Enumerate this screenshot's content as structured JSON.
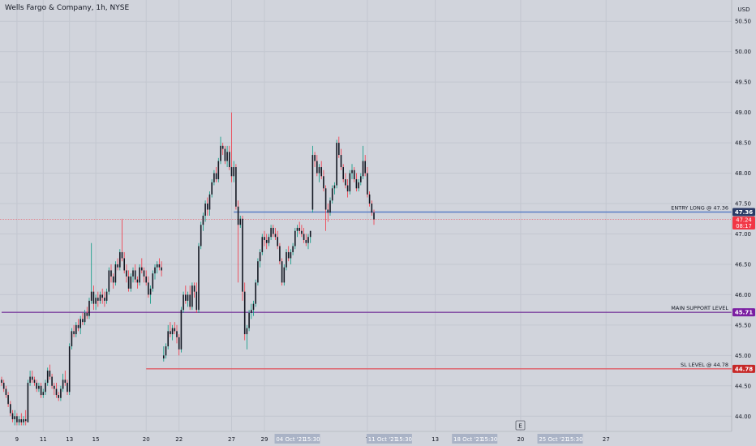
{
  "header": {
    "title": "Wells Fargo & Company, 1h, NYSE",
    "currency": "USD"
  },
  "chart_data": {
    "type": "candlestick",
    "ylim": [
      43.75,
      50.85
    ],
    "y_ticks": [
      "44.00",
      "44.50",
      "45.00",
      "45.50",
      "46.00",
      "46.50",
      "47.00",
      "47.50",
      "48.00",
      "48.50",
      "49.00",
      "49.50",
      "50.00",
      "50.50"
    ],
    "x_ticks": [
      {
        "bar": 7,
        "label": "9"
      },
      {
        "bar": 19,
        "label": "11"
      },
      {
        "bar": 31,
        "label": "13"
      },
      {
        "bar": 43,
        "label": "15"
      },
      {
        "bar": 66,
        "label": "20"
      },
      {
        "bar": 81,
        "label": "22"
      },
      {
        "bar": 105,
        "label": "27"
      },
      {
        "bar": 120,
        "label": "29"
      },
      {
        "bar": 167,
        "label": "7"
      },
      {
        "bar": 198,
        "label": "13"
      },
      {
        "bar": 237,
        "label": "20"
      },
      {
        "bar": 276,
        "label": "27"
      }
    ],
    "x_range_labels": [
      {
        "bar": 135,
        "label": "04 Oct '21",
        "time": "15:30"
      },
      {
        "bar": 177,
        "label": "11 Oct '21",
        "time": "15:30"
      },
      {
        "bar": 216,
        "label": "18 Oct '21",
        "time": "15:30"
      },
      {
        "bar": 255,
        "label": "25 Oct '21",
        "time": "15:30"
      }
    ],
    "colors": {
      "up": "#089981",
      "down": "#f23645",
      "candle_body": "#131722",
      "background": "#d1d4dc",
      "grid": "#c3c7d0",
      "axis_text": "#131722"
    },
    "ohlc": [
      [
        44.6,
        44.65,
        44.5,
        44.55
      ],
      [
        44.55,
        44.6,
        44.4,
        44.45
      ],
      [
        44.45,
        44.5,
        44.3,
        44.35
      ],
      [
        44.35,
        44.4,
        44.15,
        44.2
      ],
      [
        44.2,
        44.25,
        44.0,
        44.05
      ],
      [
        44.05,
        44.1,
        43.9,
        43.95
      ],
      [
        43.95,
        44.1,
        43.85,
        44.0
      ],
      [
        44.0,
        44.05,
        43.85,
        43.9
      ],
      [
        43.9,
        44.0,
        43.85,
        43.95
      ],
      [
        43.95,
        44.05,
        43.85,
        43.9
      ],
      [
        43.9,
        44.0,
        43.85,
        43.95
      ],
      [
        43.95,
        44.1,
        43.85,
        43.92
      ],
      [
        43.9,
        44.6,
        43.9,
        44.55
      ],
      [
        44.55,
        44.75,
        44.5,
        44.65
      ],
      [
        44.65,
        44.75,
        44.55,
        44.6
      ],
      [
        44.6,
        44.65,
        44.5,
        44.55
      ],
      [
        44.55,
        44.6,
        44.4,
        44.45
      ],
      [
        44.45,
        44.55,
        44.4,
        44.5
      ],
      [
        44.5,
        44.55,
        44.3,
        44.35
      ],
      [
        44.35,
        44.45,
        44.3,
        44.4
      ],
      [
        44.4,
        44.6,
        44.35,
        44.55
      ],
      [
        44.55,
        44.8,
        44.5,
        44.75
      ],
      [
        44.75,
        44.85,
        44.6,
        44.65
      ],
      [
        44.65,
        44.7,
        44.45,
        44.5
      ],
      [
        44.5,
        44.55,
        44.35,
        44.45
      ],
      [
        44.45,
        44.55,
        44.3,
        44.35
      ],
      [
        44.35,
        44.4,
        44.25,
        44.3
      ],
      [
        44.3,
        44.5,
        44.25,
        44.45
      ],
      [
        44.45,
        44.7,
        44.4,
        44.6
      ],
      [
        44.6,
        44.75,
        44.5,
        44.55
      ],
      [
        44.55,
        44.6,
        44.35,
        44.4
      ],
      [
        44.4,
        45.2,
        44.35,
        45.15
      ],
      [
        45.15,
        45.45,
        45.1,
        45.4
      ],
      [
        45.4,
        45.5,
        45.3,
        45.35
      ],
      [
        45.35,
        45.55,
        45.3,
        45.5
      ],
      [
        45.5,
        45.6,
        45.4,
        45.45
      ],
      [
        45.45,
        45.65,
        45.35,
        45.6
      ],
      [
        45.6,
        45.7,
        45.5,
        45.55
      ],
      [
        45.55,
        45.75,
        45.5,
        45.7
      ],
      [
        45.7,
        45.8,
        45.6,
        45.65
      ],
      [
        45.65,
        45.95,
        45.6,
        45.9
      ],
      [
        45.9,
        46.85,
        45.85,
        46.05
      ],
      [
        46.05,
        46.15,
        45.75,
        45.85
      ],
      [
        45.85,
        46.0,
        45.75,
        45.95
      ],
      [
        45.95,
        46.05,
        45.8,
        45.9
      ],
      [
        45.9,
        46.05,
        45.85,
        46.0
      ],
      [
        46.0,
        46.1,
        45.85,
        45.95
      ],
      [
        45.95,
        46.05,
        45.8,
        45.9
      ],
      [
        45.9,
        46.1,
        45.85,
        46.05
      ],
      [
        46.05,
        46.45,
        46.0,
        46.4
      ],
      [
        46.4,
        46.5,
        46.2,
        46.3
      ],
      [
        46.3,
        46.35,
        46.1,
        46.2
      ],
      [
        46.2,
        46.55,
        46.15,
        46.5
      ],
      [
        46.5,
        46.6,
        46.4,
        46.45
      ],
      [
        46.45,
        46.75,
        46.4,
        46.7
      ],
      [
        46.7,
        47.25,
        46.55,
        46.6
      ],
      [
        46.6,
        46.7,
        46.35,
        46.4
      ],
      [
        46.4,
        46.5,
        46.2,
        46.3
      ],
      [
        46.3,
        46.4,
        46.05,
        46.1
      ],
      [
        46.1,
        46.35,
        46.05,
        46.3
      ],
      [
        46.3,
        46.45,
        46.2,
        46.4
      ],
      [
        46.4,
        46.5,
        46.2,
        46.25
      ],
      [
        46.25,
        46.3,
        46.1,
        46.2
      ],
      [
        46.2,
        46.5,
        46.15,
        46.45
      ],
      [
        46.45,
        46.6,
        46.35,
        46.4
      ],
      [
        46.4,
        46.45,
        46.2,
        46.3
      ],
      [
        46.3,
        46.4,
        46.15,
        46.2
      ],
      [
        46.2,
        46.3,
        45.95,
        46.0
      ],
      [
        46.0,
        46.15,
        45.85,
        46.1
      ],
      [
        46.1,
        46.4,
        46.05,
        46.35
      ],
      [
        46.35,
        46.5,
        46.25,
        46.45
      ],
      [
        46.45,
        46.55,
        46.35,
        46.5
      ],
      [
        46.5,
        46.6,
        46.4,
        46.45
      ],
      [
        46.45,
        46.55,
        46.3,
        46.4
      ],
      [
        44.95,
        45.15,
        44.9,
        45.0
      ],
      [
        45.0,
        45.2,
        44.95,
        45.15
      ],
      [
        45.15,
        45.5,
        45.1,
        45.4
      ],
      [
        45.4,
        45.55,
        45.3,
        45.35
      ],
      [
        45.35,
        45.5,
        45.25,
        45.45
      ],
      [
        45.45,
        45.55,
        45.35,
        45.4
      ],
      [
        45.4,
        45.5,
        45.2,
        45.3
      ],
      [
        45.3,
        45.35,
        45.0,
        45.1
      ],
      [
        45.1,
        45.8,
        45.05,
        45.75
      ],
      [
        45.75,
        46.05,
        45.7,
        46.0
      ],
      [
        46.0,
        46.15,
        45.85,
        45.9
      ],
      [
        45.9,
        46.05,
        45.8,
        46.0
      ],
      [
        46.0,
        46.15,
        45.75,
        45.8
      ],
      [
        45.8,
        46.2,
        45.75,
        46.15
      ],
      [
        46.15,
        46.2,
        45.95,
        46.05
      ],
      [
        46.05,
        46.2,
        45.7,
        45.75
      ],
      [
        45.75,
        46.85,
        45.7,
        46.8
      ],
      [
        46.8,
        47.2,
        46.75,
        47.15
      ],
      [
        47.15,
        47.35,
        47.05,
        47.3
      ],
      [
        47.3,
        47.55,
        47.2,
        47.5
      ],
      [
        47.5,
        47.6,
        47.3,
        47.4
      ],
      [
        47.4,
        47.7,
        47.3,
        47.65
      ],
      [
        47.65,
        47.9,
        47.6,
        47.85
      ],
      [
        47.85,
        48.05,
        47.8,
        48.0
      ],
      [
        48.0,
        48.1,
        47.85,
        47.9
      ],
      [
        47.9,
        48.25,
        47.85,
        48.2
      ],
      [
        48.2,
        48.6,
        48.15,
        48.45
      ],
      [
        48.45,
        48.5,
        48.3,
        48.4
      ],
      [
        48.4,
        48.45,
        48.15,
        48.2
      ],
      [
        48.2,
        48.45,
        48.1,
        48.35
      ],
      [
        48.35,
        48.45,
        48.05,
        48.1
      ],
      [
        48.1,
        49.0,
        47.85,
        47.95
      ],
      [
        47.95,
        48.2,
        47.85,
        48.1
      ],
      [
        48.1,
        48.15,
        47.4,
        47.45
      ],
      [
        47.45,
        47.55,
        46.2,
        47.15
      ],
      [
        47.15,
        47.3,
        47.1,
        47.25
      ],
      [
        47.25,
        47.3,
        45.9,
        46.05
      ],
      [
        46.05,
        46.2,
        45.25,
        45.35
      ],
      [
        45.35,
        45.5,
        45.1,
        45.45
      ],
      [
        45.45,
        45.75,
        45.4,
        45.7
      ],
      [
        45.7,
        45.85,
        45.6,
        45.75
      ],
      [
        45.75,
        45.9,
        45.65,
        45.85
      ],
      [
        45.85,
        46.25,
        45.8,
        46.2
      ],
      [
        46.2,
        46.6,
        46.15,
        46.55
      ],
      [
        46.55,
        46.75,
        46.45,
        46.7
      ],
      [
        46.7,
        47.0,
        46.65,
        46.95
      ],
      [
        46.95,
        47.05,
        46.8,
        46.9
      ],
      [
        46.9,
        47.0,
        46.75,
        46.85
      ],
      [
        46.85,
        47.0,
        46.8,
        46.95
      ],
      [
        46.95,
        47.15,
        46.9,
        47.1
      ],
      [
        47.1,
        47.15,
        46.95,
        47.0
      ],
      [
        47.0,
        47.1,
        46.9,
        46.95
      ],
      [
        46.95,
        47.05,
        46.75,
        46.8
      ],
      [
        46.8,
        46.85,
        46.5,
        46.55
      ],
      [
        46.55,
        46.6,
        46.15,
        46.2
      ],
      [
        46.2,
        46.5,
        46.15,
        46.45
      ],
      [
        46.45,
        46.75,
        46.4,
        46.7
      ],
      [
        46.7,
        46.8,
        46.55,
        46.6
      ],
      [
        46.6,
        46.75,
        46.5,
        46.7
      ],
      [
        46.7,
        46.85,
        46.65,
        46.8
      ],
      [
        46.8,
        47.1,
        46.75,
        47.05
      ],
      [
        47.05,
        47.15,
        46.95,
        47.1
      ],
      [
        47.1,
        47.2,
        47.0,
        47.05
      ],
      [
        47.05,
        47.15,
        46.95,
        47.0
      ],
      [
        47.0,
        47.1,
        46.85,
        46.9
      ],
      [
        46.9,
        47.0,
        46.8,
        46.85
      ],
      [
        46.85,
        47.0,
        46.75,
        46.95
      ],
      [
        46.95,
        47.05,
        46.85,
        47.05
      ],
      [
        47.4,
        48.45,
        47.35,
        48.3
      ],
      [
        48.3,
        48.35,
        48.1,
        48.2
      ],
      [
        48.2,
        48.3,
        47.95,
        48.0
      ],
      [
        48.0,
        48.15,
        47.85,
        48.1
      ],
      [
        48.1,
        48.2,
        47.9,
        47.95
      ],
      [
        47.95,
        48.05,
        47.7,
        47.75
      ],
      [
        47.75,
        47.8,
        47.05,
        47.4
      ],
      [
        47.4,
        47.5,
        47.2,
        47.35
      ],
      [
        47.35,
        47.6,
        47.3,
        47.55
      ],
      [
        47.55,
        47.8,
        47.5,
        47.75
      ],
      [
        47.75,
        47.85,
        47.65,
        47.8
      ],
      [
        47.8,
        48.55,
        47.75,
        48.5
      ],
      [
        48.5,
        48.6,
        48.25,
        48.3
      ],
      [
        48.3,
        48.4,
        48.05,
        48.1
      ],
      [
        48.1,
        48.15,
        47.85,
        47.9
      ],
      [
        47.9,
        48.0,
        47.75,
        47.8
      ],
      [
        47.8,
        47.9,
        47.6,
        47.7
      ],
      [
        47.7,
        48.05,
        47.65,
        48.0
      ],
      [
        48.0,
        48.15,
        47.9,
        48.05
      ],
      [
        48.05,
        48.1,
        47.85,
        47.9
      ],
      [
        47.9,
        48.0,
        47.7,
        47.75
      ],
      [
        47.75,
        47.9,
        47.7,
        47.85
      ],
      [
        47.85,
        48.0,
        47.8,
        47.95
      ],
      [
        47.95,
        48.45,
        47.9,
        48.2
      ],
      [
        48.2,
        48.3,
        47.95,
        48.0
      ],
      [
        48.0,
        48.1,
        47.6,
        47.65
      ],
      [
        47.65,
        47.7,
        47.45,
        47.5
      ],
      [
        47.5,
        47.55,
        47.3,
        47.35
      ],
      [
        47.35,
        47.4,
        47.15,
        47.24
      ]
    ],
    "levels": [
      {
        "name": "Entry",
        "label": "ENTRY LONG @ 47.36",
        "value": 47.36,
        "price_text": "47.36",
        "color": "#5b7fc6",
        "badge_bg": "#2a3a66",
        "start_bar": 106
      },
      {
        "name": "Support",
        "label": "MAIN SUPPORT LEVEL",
        "value": 45.71,
        "price_text": "45.71",
        "color": "#7b3f9e",
        "badge_bg": "#7b1fa2",
        "start_bar": 0
      },
      {
        "name": "StopLoss",
        "label": "SL LEVEL @ 44.78",
        "value": 44.78,
        "price_text": "44.78",
        "color": "#e05b66",
        "badge_bg": "#c62828",
        "start_bar": 66
      }
    ],
    "last_price": {
      "value": 47.24,
      "price_text": "47.24",
      "countdown": "08:17",
      "color": "#f23645"
    },
    "buttons": {
      "auto_scale": "E"
    }
  }
}
